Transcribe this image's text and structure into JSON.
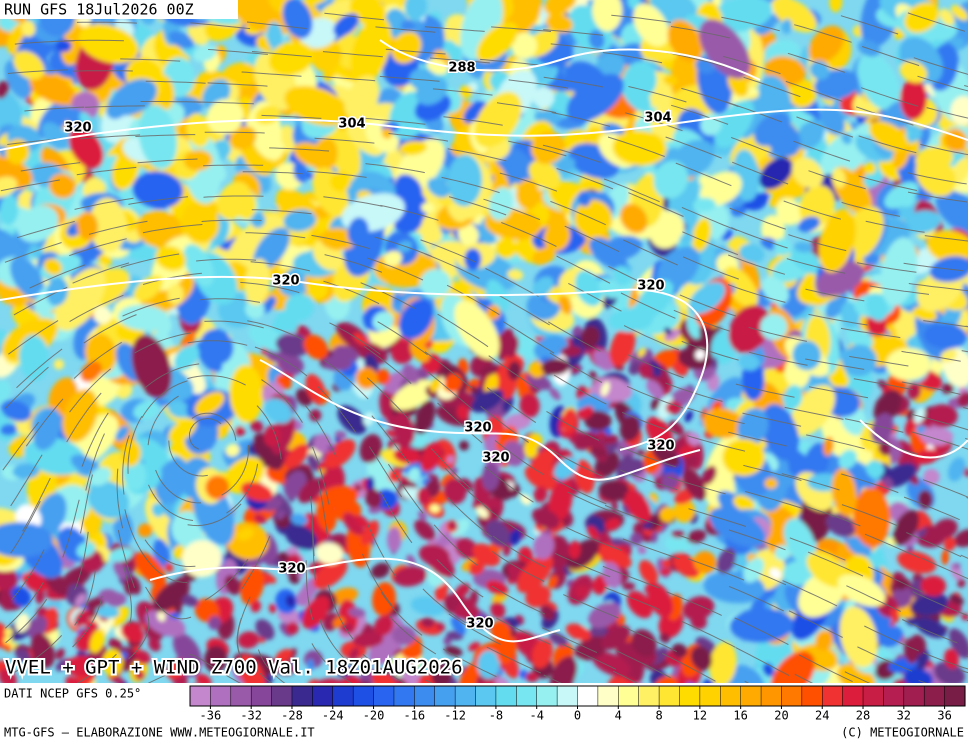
{
  "header": {
    "run": "RUN GFS 18Jul2026 00Z"
  },
  "map": {
    "title": "VVEL + GPT + WIND Z700 Val. 18Z01AUG2026",
    "contour_labels": [
      288,
      304,
      304,
      320,
      320,
      320,
      320,
      320,
      320,
      320,
      320
    ]
  },
  "colorbar": {
    "source": "DATI NCEP GFS 0.25°",
    "range": [
      -38,
      38
    ],
    "colors": [
      "#c486cc",
      "#b070c0",
      "#9a5aaa",
      "#86469a",
      "#6a3a8a",
      "#3a2a90",
      "#2828b0",
      "#1e3cd0",
      "#1e50e6",
      "#2864f0",
      "#3278f0",
      "#3c8cf0",
      "#46a0f0",
      "#50b4f0",
      "#5ac8f0",
      "#64dcf0",
      "#78e6f0",
      "#96f0f0",
      "#c8f8f8",
      "#ffffff",
      "#ffffc8",
      "#ffff96",
      "#fff064",
      "#ffe632",
      "#ffdc00",
      "#ffd200",
      "#ffbe00",
      "#ffaa00",
      "#ff9600",
      "#ff7800",
      "#ff5000",
      "#f03232",
      "#dc1e3c",
      "#c81e46",
      "#b41e50",
      "#a01e50",
      "#8c1e4b",
      "#781e46"
    ],
    "ticks": [
      -36,
      -32,
      -28,
      -24,
      -20,
      -16,
      -12,
      -8,
      -4,
      0,
      4,
      8,
      12,
      16,
      20,
      24,
      28,
      32,
      36
    ]
  },
  "footer": {
    "credit": "MTG-GFS — ELABORAZIONE WWW.METEOGIORNALE.IT",
    "copyright": "(C) METEOGIORNALE"
  }
}
